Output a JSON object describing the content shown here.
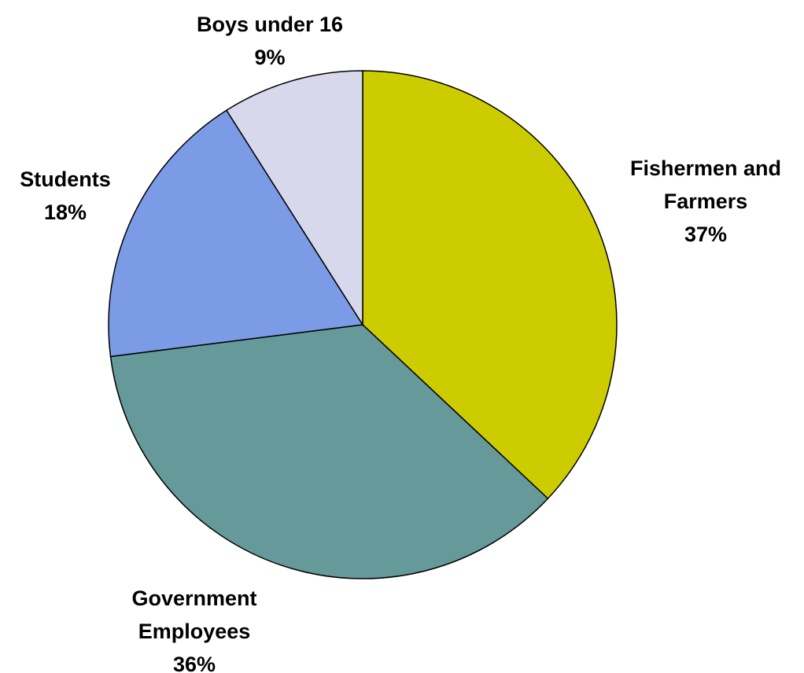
{
  "chart_data": {
    "type": "pie",
    "title": "",
    "start_angle_deg": 0,
    "direction": "clockwise",
    "slices": [
      {
        "label_lines": [
          "Fishermen and",
          "Farmers"
        ],
        "value_label": "37%",
        "value": 37,
        "color": "#cccc00"
      },
      {
        "label_lines": [
          "Government",
          "Employees"
        ],
        "value_label": "36%",
        "value": 36,
        "color": "#669999"
      },
      {
        "label_lines": [
          "Students"
        ],
        "value_label": "18%",
        "value": 18,
        "color": "#7b9be6"
      },
      {
        "label_lines": [
          "Boys under 16"
        ],
        "value_label": "9%",
        "value": 9,
        "color": "#d8d8ec"
      }
    ]
  }
}
